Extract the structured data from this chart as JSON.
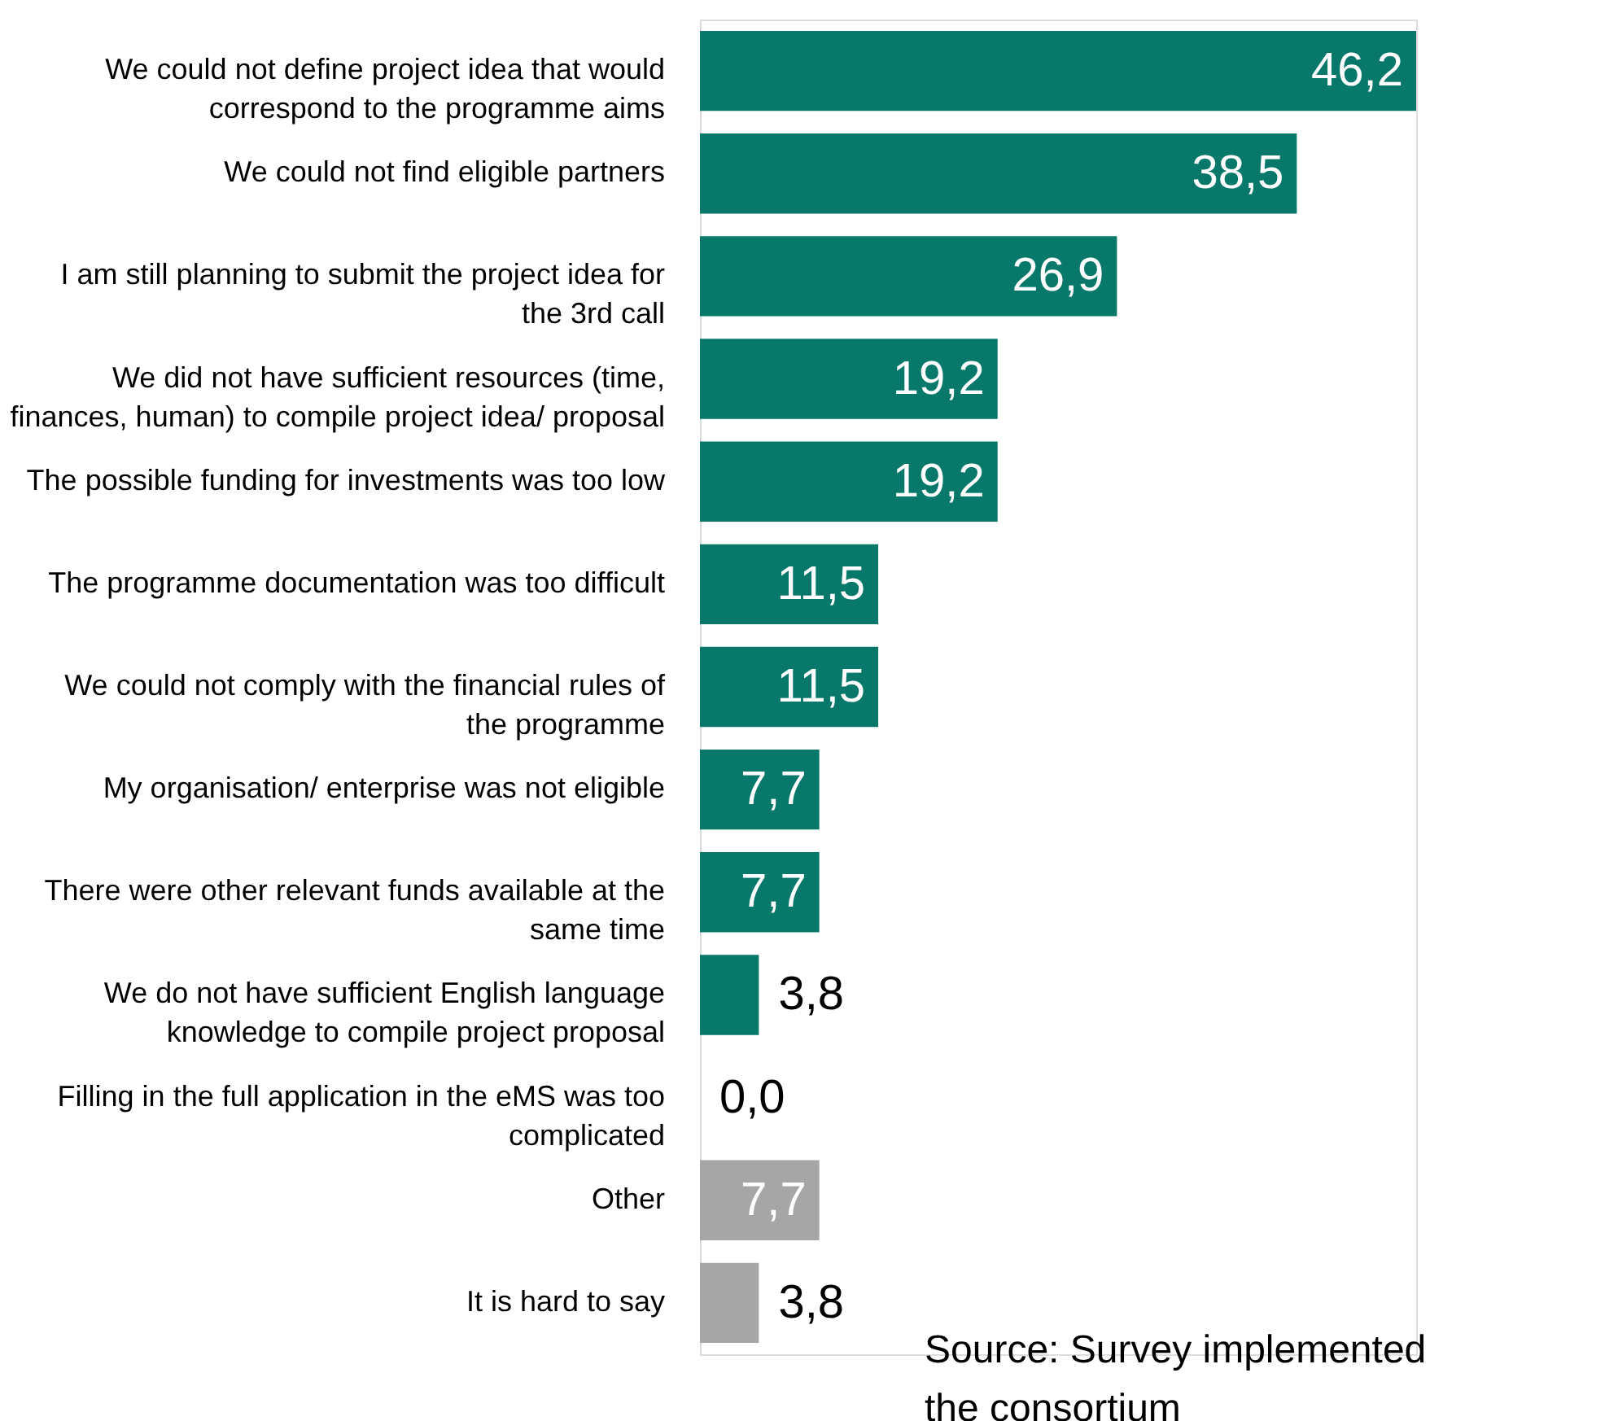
{
  "chart_data": {
    "type": "bar",
    "orientation": "horizontal",
    "categories": [
      "We could not define project idea that would correspond to the programme aims",
      "We could not find eligible partners",
      "I am still planning to submit the project idea for the 3rd call",
      "We did not have sufficient resources (time, finances, human) to compile project idea/ proposal",
      "The possible funding for investments was too low",
      "The programme documentation was too difficult",
      "We could not comply with the financial rules of the programme",
      "My organisation/ enterprise was not eligible",
      "There were other relevant funds available at the same time",
      "We do not have sufficient English language knowledge to compile project proposal",
      "Filling in the full application in the eMS was too complicated",
      "Other",
      "It is hard to say"
    ],
    "values": [
      46.2,
      38.5,
      26.9,
      19.2,
      19.2,
      11.5,
      11.5,
      7.7,
      7.7,
      3.8,
      0.0,
      7.7,
      3.8
    ],
    "value_labels": [
      "46,2",
      "38,5",
      "26,9",
      "19,2",
      "19,2",
      "11,5",
      "11,5",
      "7,7",
      "7,7",
      "3,8",
      "0,0",
      "7,7",
      "3,8"
    ],
    "colors": [
      "#07786a",
      "#07786a",
      "#07786a",
      "#07786a",
      "#07786a",
      "#07786a",
      "#07786a",
      "#07786a",
      "#07786a",
      "#07786a",
      "#07786a",
      "#a6a6a6",
      "#a6a6a6"
    ],
    "annotations": [
      "Source: Survey implemented\nthe consortium"
    ],
    "grid": false,
    "legend": false
  }
}
